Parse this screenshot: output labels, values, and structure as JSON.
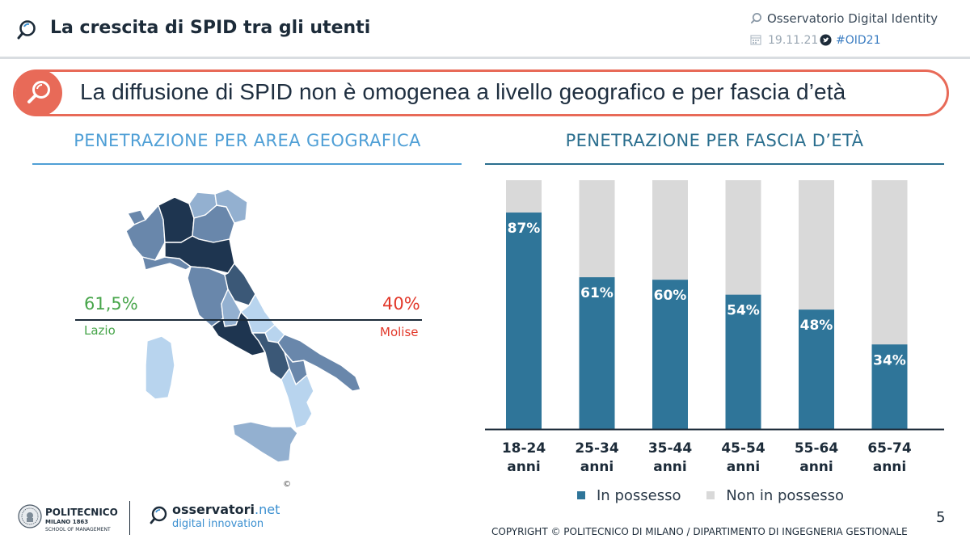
{
  "header": {
    "title": "La crescita di SPID tra gli utenti",
    "observatory": "Osservatorio Digital Identity",
    "date": "19.11.21",
    "hashtag": "#OID21"
  },
  "banner": {
    "text": "La diffusione di SPID non è omogenea a livello geografico e per fascia d’età"
  },
  "left_panel": {
    "title": "PENETRAZIONE PER AREA GEOGRAFICA",
    "max_value": "61,5%",
    "max_region": "Lazio",
    "min_value": "40%",
    "min_region": "Molise",
    "copyright_mark": "©"
  },
  "right_panel": {
    "title": "PENETRAZIONE PER FASCIA D’ETÀ"
  },
  "chart_data": {
    "type": "bar",
    "stacked": true,
    "categories": [
      "18-24",
      "25-34",
      "35-44",
      "45-54",
      "55-64",
      "65-74"
    ],
    "category_suffix": "anni",
    "ylim": [
      0,
      100
    ],
    "series": [
      {
        "name": "In possesso",
        "color": "#2f7599",
        "values": [
          87,
          61,
          60,
          54,
          48,
          34
        ]
      },
      {
        "name": "Non in possesso",
        "color": "#d9d9d9",
        "values": [
          13,
          39,
          40,
          46,
          52,
          66
        ]
      }
    ],
    "data_labels": [
      "87%",
      "61%",
      "60%",
      "54%",
      "48%",
      "34%"
    ],
    "legend_position": "bottom"
  },
  "footer": {
    "polimi_name": "POLITECNICO",
    "polimi_sub1": "MILANO 1863",
    "polimi_sub2": "SCHOOL OF MANAGEMENT",
    "osv_name": "osservatori",
    "osv_net": ".net",
    "osv_sub": "digital innovation",
    "page_number": "5",
    "copyright": "COPYRIGHT © POLITECNICO DI MILANO / DIPARTIMENTO DI INGEGNERIA GESTIONALE"
  },
  "map_colors": {
    "darkest": "#1e3550",
    "dark": "#3b5877",
    "mid": "#6987ab",
    "light": "#93b0d0",
    "lightest": "#b8d4ee"
  }
}
